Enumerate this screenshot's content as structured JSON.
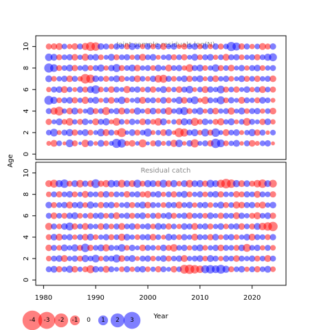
{
  "chart_data": {
    "type": "scatter",
    "encoding": "bubble residual plot; circle area proportional to |residual|; blue = positive, red = negative",
    "xlabel": "Year",
    "ylabel": "Age",
    "x_ticks": [
      1980,
      1990,
      2000,
      2010,
      2020
    ],
    "y_ticks": [
      0,
      2,
      4,
      6,
      8,
      10
    ],
    "xlim": [
      1978.5,
      2026.5
    ],
    "colors": {
      "positive": "#0000FF",
      "negative": "#FF0000",
      "panel_title": "#888888"
    },
    "legend": {
      "placement": "bottom-left",
      "entries": [
        {
          "label": "-4",
          "value": -4
        },
        {
          "label": "-3",
          "value": -3
        },
        {
          "label": "-2",
          "value": -2
        },
        {
          "label": "-1",
          "value": -1
        },
        {
          "label": "0",
          "value": 0
        },
        {
          "label": "1",
          "value": 1
        },
        {
          "label": "2",
          "value": 2
        },
        {
          "label": "3",
          "value": 3
        }
      ]
    },
    "panels": [
      {
        "title": "Joint sample residuals log(N)",
        "ylim": [
          -0.5,
          11
        ],
        "years": [
          1981,
          2024
        ],
        "ages": [
          1,
          10
        ],
        "residuals": {
          "1": [
            -0.6,
            -1.2,
            0.8,
            -0.4,
            1.5,
            -0.9,
            0.3,
            -1.4,
            0.9,
            -0.5,
            1.2,
            -0.8,
            0.6,
            2.1,
            1.8,
            -0.7,
            -1.1,
            0.5,
            -1.6,
            0.4,
            -0.9,
            1.1,
            -0.6,
            0.8,
            -1.3,
            1.4,
            -0.5,
            1.0,
            -1.7,
            0.6,
            0.9,
            -1.0,
            2.2,
            1.5,
            -0.8,
            0.7,
            1.2,
            -0.5,
            0.9,
            -1.1,
            -0.6,
            0.8,
            1.0,
            -0.4
          ],
          "2": [
            0.8,
            1.5,
            -0.6,
            0.9,
            1.3,
            -1.0,
            0.7,
            1.2,
            -0.8,
            0.6,
            1.4,
            -1.2,
            0.9,
            -0.7,
            -2.0,
            0.5,
            1.1,
            -0.9,
            0.8,
            1.6,
            -0.6,
            0.7,
            -1.1,
            1.2,
            -0.5,
            -2.1,
            -1.6,
            0.9,
            1.3,
            -0.7,
            1.5,
            -0.9,
            1.8,
            0.6,
            -1.2,
            0.8,
            1.1,
            -0.6,
            0.7,
            1.3,
            -1.0,
            0.9,
            -0.5,
            0.8
          ],
          "3": [
            -1.0,
            0.6,
            1.2,
            -0.8,
            -1.4,
            0.7,
            -0.9,
            1.1,
            0.5,
            -1.2,
            0.9,
            1.3,
            -0.6,
            -1.5,
            0.8,
            -0.7,
            1.0,
            0.6,
            -1.1,
            0.9,
            -0.8,
            -1.4,
            1.2,
            -0.5,
            0.7,
            -1.0,
            1.3,
            0.9,
            -1.6,
            -0.8,
            1.1,
            0.6,
            -0.9,
            -1.3,
            0.7,
            1.2,
            -0.6,
            0.8,
            -1.5,
            0.9,
            0.6,
            -1.0,
            1.1,
            -0.7
          ],
          "4": [
            0.9,
            -1.3,
            -2.0,
            0.7,
            -1.1,
            1.2,
            -0.8,
            0.6,
            1.4,
            -0.9,
            0.8,
            -1.6,
            0.7,
            1.0,
            -1.2,
            0.9,
            -0.7,
            1.3,
            0.6,
            -1.0,
            1.1,
            -0.8,
            0.9,
            -1.4,
            0.7,
            1.2,
            1.6,
            -0.9,
            0.8,
            1.3,
            -0.6,
            1.0,
            -1.1,
            0.7,
            0.9,
            -1.3,
            0.6,
            1.2,
            -0.8,
            0.9,
            1.0,
            -0.7,
            0.8,
            -1.1
          ],
          "5": [
            2.0,
            1.3,
            -0.8,
            0.9,
            1.1,
            -1.0,
            0.7,
            -1.3,
            0.8,
            1.2,
            -0.6,
            0.9,
            -1.1,
            0.7,
            1.4,
            -0.8,
            0.6,
            1.0,
            -1.2,
            0.8,
            0.9,
            -0.7,
            1.1,
            -0.9,
            0.6,
            1.3,
            -1.1,
            0.8,
            1.5,
            -0.6,
            -1.4,
            0.9,
            0.7,
            1.6,
            -0.8,
            1.0,
            0.6,
            -1.2,
            0.9,
            0.7,
            -0.9,
            1.1,
            0.8,
            -0.6
          ],
          "6": [
            -0.7,
            0.9,
            1.1,
            -1.2,
            0.8,
            -0.6,
            1.0,
            -0.9,
            1.2,
            1.8,
            -0.8,
            0.7,
            -1.1,
            0.9,
            0.6,
            -1.3,
            0.8,
            1.0,
            -0.7,
            0.9,
            -1.0,
            0.6,
            1.2,
            -0.8,
            0.7,
            -1.1,
            0.9,
            1.4,
            -0.6,
            0.8,
            -1.2,
            1.0,
            0.7,
            1.5,
            -0.9,
            0.8,
            -1.0,
            0.6,
            1.1,
            -0.7,
            0.9,
            -1.2,
            0.8,
            -0.9
          ],
          "7": [
            1.2,
            -0.8,
            0.7,
            1.0,
            -1.1,
            0.9,
            -0.7,
            -2.3,
            -1.8,
            1.1,
            0.8,
            -0.9,
            0.7,
            1.2,
            -1.0,
            0.6,
            0.9,
            -1.2,
            0.8,
            -0.7,
            1.0,
            -1.4,
            -1.6,
            0.9,
            -0.8,
            0.7,
            1.1,
            -1.0,
            0.8,
            1.2,
            -0.6,
            0.9,
            -1.1,
            0.7,
            1.0,
            -0.8,
            0.6,
            1.1,
            -0.9,
            0.8,
            -1.0,
            0.7,
            0.9,
            -1.1
          ],
          "8": [
            2.1,
            1.5,
            -0.9,
            0.8,
            1.2,
            -1.0,
            0.7,
            1.1,
            -0.8,
            0.9,
            1.3,
            -0.7,
            1.0,
            1.6,
            -0.9,
            0.8,
            1.2,
            -1.1,
            0.7,
            0.9,
            -0.8,
            1.1,
            0.6,
            -1.2,
            0.8,
            1.0,
            -0.7,
            -1.5,
            0.9,
            1.2,
            -0.8,
            0.7,
            1.4,
            -0.9,
            0.8,
            -1.1,
            0.6,
            1.0,
            -0.7,
            0.9,
            1.1,
            -0.8,
            0.7,
            0.9
          ],
          "9": [
            1.4,
            1.2,
            -0.9,
            0.8,
            1.0,
            -1.1,
            0.7,
            -1.3,
            0.9,
            1.1,
            -0.8,
            0.6,
            1.2,
            -0.9,
            0.8,
            1.0,
            -0.7,
            0.9,
            -1.2,
            0.8,
            1.1,
            -0.6,
            0.7,
            1.0,
            -0.9,
            0.8,
            -1.0,
            0.6,
            1.2,
            -0.8,
            0.9,
            1.1,
            -0.7,
            0.8,
            -1.2,
            0.9,
            1.0,
            -0.8,
            0.7,
            0.9,
            -1.0,
            0.8,
            1.3,
            1.6
          ],
          "10": [
            -0.9,
            -1.0,
            -1.2,
            0.8,
            -0.7,
            -1.1,
            0.9,
            -1.3,
            -2.0,
            -1.8,
            1.1,
            0.9,
            -0.8,
            1.0,
            0.7,
            -0.9,
            1.2,
            0.8,
            -0.7,
            1.0,
            -0.8,
            0.9,
            -1.1,
            0.7,
            1.0,
            -0.6,
            -0.9,
            0.8,
            1.1,
            -0.8,
            0.9,
            -0.7,
            1.0,
            -0.9,
            0.8,
            2.1,
            1.6,
            -1.0,
            0.9,
            -0.7,
            0.8,
            -1.2,
            -0.9,
            1.0
          ]
        }
      },
      {
        "title": "Residual catch",
        "ylim": [
          -0.5,
          11
        ],
        "years": [
          1981,
          2024
        ],
        "ages": [
          1,
          9
        ],
        "residuals": {
          "1": [
            0.9,
            1.2,
            -1.0,
            0.8,
            1.3,
            -1.1,
            0.7,
            -0.9,
            -1.6,
            1.1,
            0.8,
            -1.2,
            0.9,
            0.6,
            -0.8,
            1.0,
            -0.7,
            0.9,
            1.1,
            -0.8,
            0.7,
            -1.0,
            0.9,
            0.6,
            -1.1,
            0.8,
            -2.0,
            -2.2,
            -1.8,
            -1.4,
            1.6,
            1.8,
            1.5,
            2.0,
            1.3,
            -0.9,
            0.8,
            1.1,
            -0.7,
            0.9,
            -1.0,
            0.8,
            1.2,
            -0.8
          ],
          "2": [
            -0.8,
            0.9,
            1.1,
            -1.2,
            0.7,
            1.0,
            -0.9,
            1.3,
            0.8,
            1.5,
            -0.7,
            1.0,
            0.9,
            1.6,
            -1.1,
            0.8,
            1.2,
            -0.6,
            0.9,
            1.0,
            -0.8,
            0.7,
            1.1,
            -0.9,
            0.8,
            1.0,
            -1.2,
            0.7,
            0.9,
            1.1,
            -0.8,
            1.2,
            0.9,
            -0.7,
            1.0,
            0.8,
            -1.1,
            0.9,
            0.7,
            1.0,
            -0.9,
            0.8,
            -1.2,
            0.9
          ],
          "3": [
            -1.1,
            0.9,
            -0.8,
            1.2,
            0.7,
            1.3,
            -0.9,
            1.8,
            -1.0,
            0.8,
            1.2,
            -1.3,
            0.9,
            0.7,
            1.4,
            -0.8,
            1.0,
            0.6,
            -1.1,
            0.9,
            0.8,
            -0.7,
            1.1,
            -0.9,
            -1.4,
            0.8,
            1.0,
            -0.7,
            0.9,
            1.2,
            -0.8,
            0.7,
            1.0,
            -1.1,
            0.9,
            0.8,
            -0.9,
            1.1,
            -1.6,
            0.8,
            1.0,
            -0.7,
            0.9,
            -0.8
          ],
          "4": [
            -0.9,
            1.1,
            -1.2,
            0.8,
            1.0,
            -0.7,
            0.9,
            -1.1,
            1.2,
            -0.8,
            0.7,
            1.0,
            -0.9,
            0.8,
            -1.3,
            1.1,
            0.7,
            -0.8,
            0.9,
            1.0,
            -1.1,
            0.8,
            -0.6,
            1.2,
            0.9,
            -0.8,
            1.0,
            0.7,
            -1.2,
            0.9,
            0.8,
            -1.0,
            1.1,
            -0.7,
            0.9,
            1.0,
            -0.8,
            0.7,
            1.1,
            -1.2,
            0.9,
            0.8,
            -0.9,
            1.0
          ],
          "5": [
            -1.3,
            0.9,
            -0.8,
            1.1,
            1.6,
            -1.0,
            0.8,
            -1.2,
            0.9,
            0.7,
            -1.1,
            1.0,
            -0.8,
            0.9,
            -1.2,
            0.8,
            1.1,
            -0.9,
            0.7,
            1.0,
            -0.8,
            1.2,
            0.9,
            -1.0,
            0.8,
            -0.7,
            1.1,
            0.9,
            -1.2,
            0.8,
            1.0,
            -0.9,
            0.7,
            1.1,
            -0.8,
            0.9,
            1.0,
            -1.1,
            0.8,
            -0.9,
            1.2,
            -1.4,
            -1.8,
            -2.2
          ],
          "6": [
            0.9,
            -1.1,
            0.8,
            -0.9,
            1.0,
            1.2,
            -0.8,
            0.7,
            -1.0,
            0.9,
            1.1,
            -0.8,
            0.9,
            -1.2,
            0.7,
            1.0,
            -0.9,
            0.8,
            1.1,
            -0.7,
            0.9,
            -1.0,
            0.8,
            1.2,
            -0.9,
            0.7,
            1.0,
            -1.1,
            0.8,
            0.9,
            -0.8,
            1.1,
            0.7,
            -1.0,
            0.9,
            0.8,
            -1.2,
            1.0,
            0.7,
            -0.9,
            -1.3,
            0.8,
            1.1,
            -1.0
          ],
          "7": [
            1.1,
            -0.9,
            0.8,
            1.0,
            -1.2,
            0.9,
            1.2,
            -0.8,
            1.3,
            0.7,
            -1.0,
            0.9,
            1.1,
            -0.8,
            0.7,
            1.0,
            -0.9,
            0.8,
            1.2,
            -1.1,
            0.9,
            0.7,
            -0.8,
            1.0,
            0.9,
            -1.2,
            0.8,
            1.1,
            -0.7,
            0.9,
            1.0,
            -0.8,
            0.7,
            1.2,
            -0.9,
            0.8,
            -1.3,
            -1.1,
            0.9,
            1.0,
            -0.8,
            -1.2,
            0.7,
            1.1
          ],
          "8": [
            -0.8,
            0.9,
            -1.0,
            0.8,
            1.1,
            -0.9,
            0.7,
            -1.2,
            0.9,
            0.8,
            -1.0,
            1.1,
            -0.8,
            0.9,
            0.7,
            -1.1,
            0.8,
            1.0,
            -0.9,
            -1.2,
            0.8,
            1.1,
            -0.7,
            0.9,
            -1.0,
            0.8,
            1.2,
            -0.9,
            0.7,
            1.0,
            -0.8,
            0.9,
            1.1,
            -1.0,
            0.8,
            0.7,
            -1.1,
            -0.9,
            1.0,
            0.8,
            -1.2,
            0.9,
            0.8,
            -1.0
          ],
          "9": [
            -1.2,
            -1.6,
            1.3,
            1.8,
            -0.9,
            1.2,
            -1.4,
            1.0,
            -1.1,
            1.9,
            -1.0,
            -1.3,
            1.4,
            1.2,
            -1.5,
            1.1,
            -1.2,
            1.6,
            -0.9,
            1.3,
            1.2,
            -1.0,
            1.5,
            -1.1,
            1.3,
            -0.8,
            1.2,
            -1.4,
            1.1,
            1.3,
            -1.0,
            1.5,
            1.2,
            -1.6,
            -2.3,
            -1.8,
            1.3,
            -1.2,
            1.1,
            -0.9,
            -1.4,
            -1.8,
            1.2,
            -1.5
          ]
        }
      }
    ]
  }
}
